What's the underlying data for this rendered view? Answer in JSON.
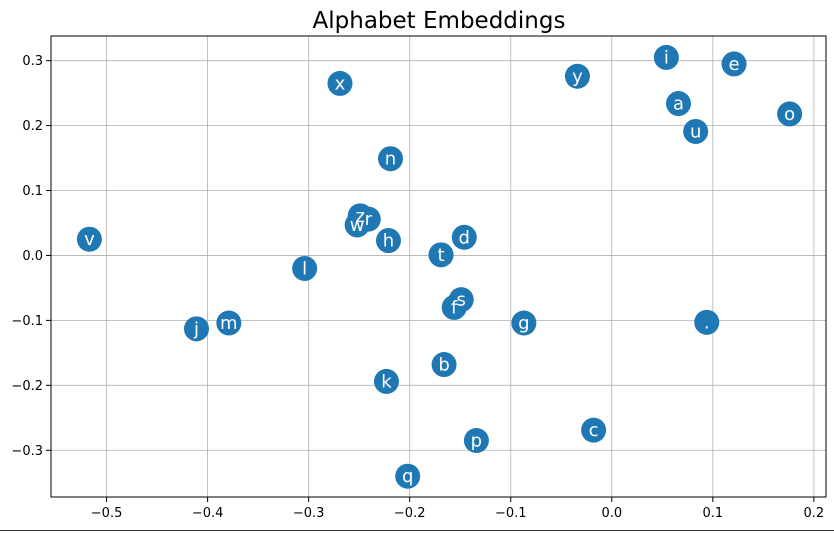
{
  "chart_data": {
    "type": "scatter",
    "title": "Alphabet Embeddings",
    "xlabel": "",
    "ylabel": "",
    "xlim": [
      -0.555,
      0.212
    ],
    "ylim": [
      -0.372,
      0.338
    ],
    "xticks": [
      -0.5,
      -0.4,
      -0.3,
      -0.2,
      -0.1,
      0.0,
      0.1,
      0.2
    ],
    "xtick_labels": [
      "−0.5",
      "−0.4",
      "−0.3",
      "−0.2",
      "−0.1",
      "0.0",
      "0.1",
      "0.2"
    ],
    "yticks": [
      -0.3,
      -0.2,
      -0.1,
      0.0,
      0.1,
      0.2,
      0.3
    ],
    "ytick_labels": [
      "−0.3",
      "−0.2",
      "−0.1",
      "0.0",
      "0.1",
      "0.2",
      "0.3"
    ],
    "grid": true,
    "marker_color": "#1f77b4",
    "label_color": "#ffffff",
    "points": [
      {
        "label": "i",
        "x": 0.054,
        "y": 0.305
      },
      {
        "label": "e",
        "x": 0.121,
        "y": 0.295
      },
      {
        "label": "y",
        "x": -0.034,
        "y": 0.276
      },
      {
        "label": "x",
        "x": -0.269,
        "y": 0.265
      },
      {
        "label": "a",
        "x": 0.066,
        "y": 0.234
      },
      {
        "label": "o",
        "x": 0.176,
        "y": 0.218
      },
      {
        "label": "u",
        "x": 0.083,
        "y": 0.191
      },
      {
        "label": "n",
        "x": -0.219,
        "y": 0.149
      },
      {
        "label": "z",
        "x": -0.249,
        "y": 0.061
      },
      {
        "label": "r",
        "x": -0.241,
        "y": 0.056
      },
      {
        "label": "w",
        "x": -0.252,
        "y": 0.047
      },
      {
        "label": "d",
        "x": -0.146,
        "y": 0.028
      },
      {
        "label": "v",
        "x": -0.517,
        "y": 0.025
      },
      {
        "label": "h",
        "x": -0.221,
        "y": 0.023
      },
      {
        "label": "t",
        "x": -0.169,
        "y": 0.001
      },
      {
        "label": "l",
        "x": -0.304,
        "y": -0.02
      },
      {
        "label": "s",
        "x": -0.149,
        "y": -0.068
      },
      {
        "label": "f",
        "x": -0.156,
        "y": -0.08
      },
      {
        "label": "g",
        "x": -0.087,
        "y": -0.104
      },
      {
        "label": ".",
        "x": 0.094,
        "y": -0.103
      },
      {
        "label": "m",
        "x": -0.379,
        "y": -0.104
      },
      {
        "label": "j",
        "x": -0.411,
        "y": -0.113
      },
      {
        "label": "b",
        "x": -0.166,
        "y": -0.168
      },
      {
        "label": "k",
        "x": -0.223,
        "y": -0.194
      },
      {
        "label": "c",
        "x": -0.018,
        "y": -0.269
      },
      {
        "label": "p",
        "x": -0.134,
        "y": -0.285
      },
      {
        "label": "q",
        "x": -0.202,
        "y": -0.34
      }
    ]
  }
}
